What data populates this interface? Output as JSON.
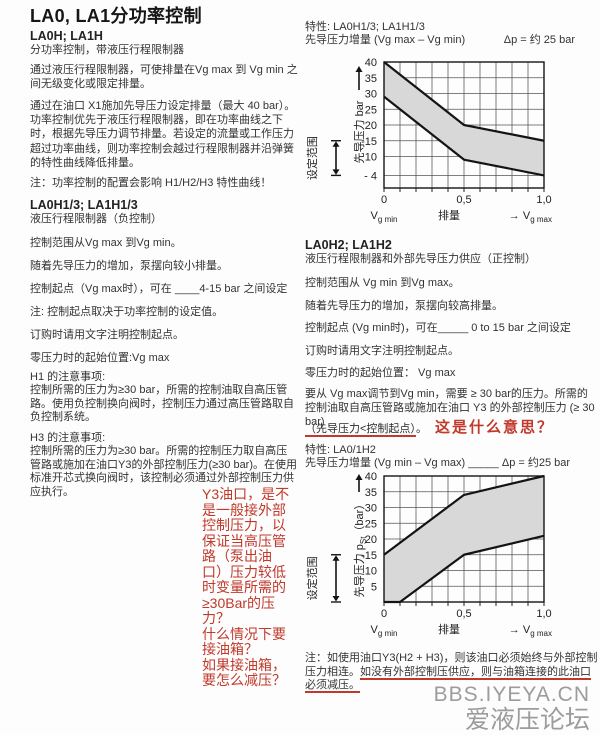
{
  "title": "LA0, LA1分功率控制",
  "colors": {
    "red": "#c0392b",
    "band": "#d8d8d8",
    "text": "#2b2b2b",
    "watermark": "#9c9c9c"
  },
  "left": {
    "section1": {
      "heading": "LA0H; LA1H",
      "subheading": "分功率控制，带液压行程限制器",
      "para1": "通过液压行程限制器，可使排量在Vg max 到 Vg min 之间无级变化或限定排量。",
      "para2": "通过在油口 X1施加先导压力设定排量（最大 40 bar）。功率控制优先于液压行程限制器，即在功率曲线之下时，根据先导压力调节排量。若设定的流量或工作压力超过功率曲线，则功率控制会越过行程限制器并沿弹簧的特性曲线降低排量。",
      "note": "注：功率控制的配置会影响 H1/H2/H3 特性曲线！"
    },
    "section2": {
      "heading": "LA0H1/3; LA1H1/3",
      "subheading": "液压行程限制器（负控制）",
      "lines": [
        "控制范围从Vg max 到Vg min。",
        "随着先导压力的增加，泵摆向较小排量。",
        "控制起点（Vg max时），可在 ____4-15 bar 之间设定",
        "注: 控制起点取决于功率控制的设定值。",
        "订购时请用文字注明控制起点。",
        "零压力时的起始位置:Vg max"
      ],
      "h1_note_heading": "H1 的注意事项:",
      "h1_note_body": "控制所需的压力为≥30 bar，所需的控制油取自高压管路。使用负控制换向阀时，控制压力通过高压管路取自负控制系统。",
      "h3_note_heading": "H3 的注意事项:",
      "h3_note_body": "控制所需的压力为≥30 bar。所需的控制压力取自高压管路或施加在油口Y3的外部控制压力(≥30 bar)。在使用标准开芯式换向阀时，该控制必须通过外部控制压力供应执行。"
    },
    "red_annotation": [
      "Y3油口，是不是一般接外部控制压力，以保证当高压管路（泵出油口）压力较低时变量所需的≥30Bar的压力？",
      "什么情况下要接油箱？",
      "如果接油箱，要怎么减压？"
    ]
  },
  "right": {
    "chart1_header": {
      "line1": "特性: LA0H1/3; LA1H1/3",
      "line2": "先导压力增量 (Vg max – Vg min)",
      "delta": "Δp = 约 25 bar"
    },
    "section_h2": {
      "heading": "LA0H2; LA1H2",
      "subheading": "液压行程限制器和外部先导压力供应（正控制）",
      "lines": [
        "控制范围从 Vg min 到Vg max。",
        "随着先导压力的增加，泵摆向较高排量。",
        "控制起点 (Vg min时)，可在_____ 0 to 15 bar 之间设定",
        "订购时请用文字注明控制起点。",
        "零压力时的起始位置： Vg max"
      ],
      "para": "要从 Vg max调节到Vg min，需要 ≥ 30 bar的压力。所需的控制油取自高压管路或施加在油口 Y3 的外部控制压力 (≥ 30 bar)",
      "underlined": "（先导压力<控制起点）",
      "punct": "。",
      "question": "这是什么意思？"
    },
    "chart2_header": {
      "line1": "特性: LA0/1H2",
      "line2": "先导压力增量 (Vg min – Vg max) _____",
      "delta": "Δp = 约25 bar"
    },
    "bottom_note": {
      "pre": "注：如使用油口Y3(H2 + H3)，则该油口必须始终与外部控制压力相连。",
      "underlined": "如没有外部控制压供应，则与油箱连接的此油口必须减压。"
    }
  },
  "watermark": {
    "line1": "BBS.IYEYA.CN",
    "line2": "爱液压论坛"
  },
  "chart_data": [
    {
      "type": "area",
      "title": "特性: LA0H1/3; LA1H1/3 — 先导压力 与 排量 (负控制)",
      "ylabel": "先导压力 bar",
      "ylabel_parts": [
        {
          "t": "先导压力 bar"
        }
      ],
      "ylabel_cy": 78,
      "yarrow": [
        36,
        12
      ],
      "xlabel": "排量",
      "x_left_parts": [
        {
          "t": "V"
        },
        {
          "t": "g min",
          "sub": true
        }
      ],
      "x_right_parts": [
        {
          "t": "→  V"
        },
        {
          "t": "g max",
          "sub": true
        }
      ],
      "range_label": "设定范围",
      "xlim": [
        0,
        1
      ],
      "ylim": [
        0,
        40
      ],
      "grid_x_step": 0.1,
      "grid": true,
      "legend_position": "none",
      "xticks": [
        {
          "v": 0,
          "label": "0"
        },
        {
          "v": 0.5,
          "label": "0,5"
        },
        {
          "v": 1,
          "label": "1,0"
        }
      ],
      "yticks": [
        {
          "v": 40,
          "label": "40"
        },
        {
          "v": 35,
          "label": "35"
        },
        {
          "v": 30,
          "label": "30"
        },
        {
          "v": 25,
          "label": "25"
        },
        {
          "v": 20,
          "label": "20"
        },
        {
          "v": 15,
          "label": "-15"
        },
        {
          "v": 10,
          "label": "10"
        },
        {
          "v": 4,
          "label": "- 4"
        }
      ],
      "arrow_span": [
        15,
        4
      ],
      "band_fill": "#d8d8d8",
      "series": [
        {
          "name": "设定范围上限",
          "x": [
            0,
            0.5,
            1.0
          ],
          "y": [
            40,
            20,
            15
          ]
        },
        {
          "name": "设定范围下限",
          "x": [
            0,
            0.5,
            1.0
          ],
          "y": [
            29,
            9,
            4
          ]
        }
      ]
    },
    {
      "type": "area",
      "title": "特性: LA0/1H2 — 先导压力 pSt 与 排量 (正控制)",
      "ylabel": "先导压力 pSt（bar）",
      "ylabel_parts": [
        {
          "t": "先导压力 p"
        },
        {
          "t": "St",
          "sub": true
        },
        {
          "t": "（bar）"
        }
      ],
      "ylabel_cy": 80,
      "yarrow": [
        24,
        6
      ],
      "xlabel": "排量",
      "x_left_parts": [
        {
          "t": "V"
        },
        {
          "t": "g min",
          "sub": true
        }
      ],
      "x_right_parts": [
        {
          "t": "→  V"
        },
        {
          "t": "g max",
          "sub": true
        }
      ],
      "range_label": "设定范围",
      "xlim": [
        0,
        1
      ],
      "ylim": [
        0,
        40
      ],
      "grid_x_step": 0.1,
      "grid": true,
      "legend_position": "none",
      "xticks": [
        {
          "v": 0,
          "label": "0"
        },
        {
          "v": 0.5,
          "label": "0,5"
        },
        {
          "v": 1,
          "label": "1,0"
        }
      ],
      "yticks": [
        {
          "v": 40,
          "label": "40"
        },
        {
          "v": 35,
          "label": "35"
        },
        {
          "v": 30,
          "label": "30"
        },
        {
          "v": 25,
          "label": "25"
        },
        {
          "v": 20,
          "label": "20"
        },
        {
          "v": 15,
          "label": "-15"
        },
        {
          "v": 10,
          "label": "10"
        },
        {
          "v": 5,
          "label": "5"
        }
      ],
      "arrow_span": [
        15,
        0
      ],
      "band_fill": "#d8d8d8",
      "series": [
        {
          "name": "设定范围上限",
          "x": [
            0,
            0.5,
            1.0
          ],
          "y": [
            15,
            34,
            40
          ]
        },
        {
          "name": "设定范围下限",
          "x": [
            0,
            0.1,
            0.5,
            1.0
          ],
          "y": [
            0,
            0,
            15,
            21
          ]
        }
      ]
    }
  ]
}
